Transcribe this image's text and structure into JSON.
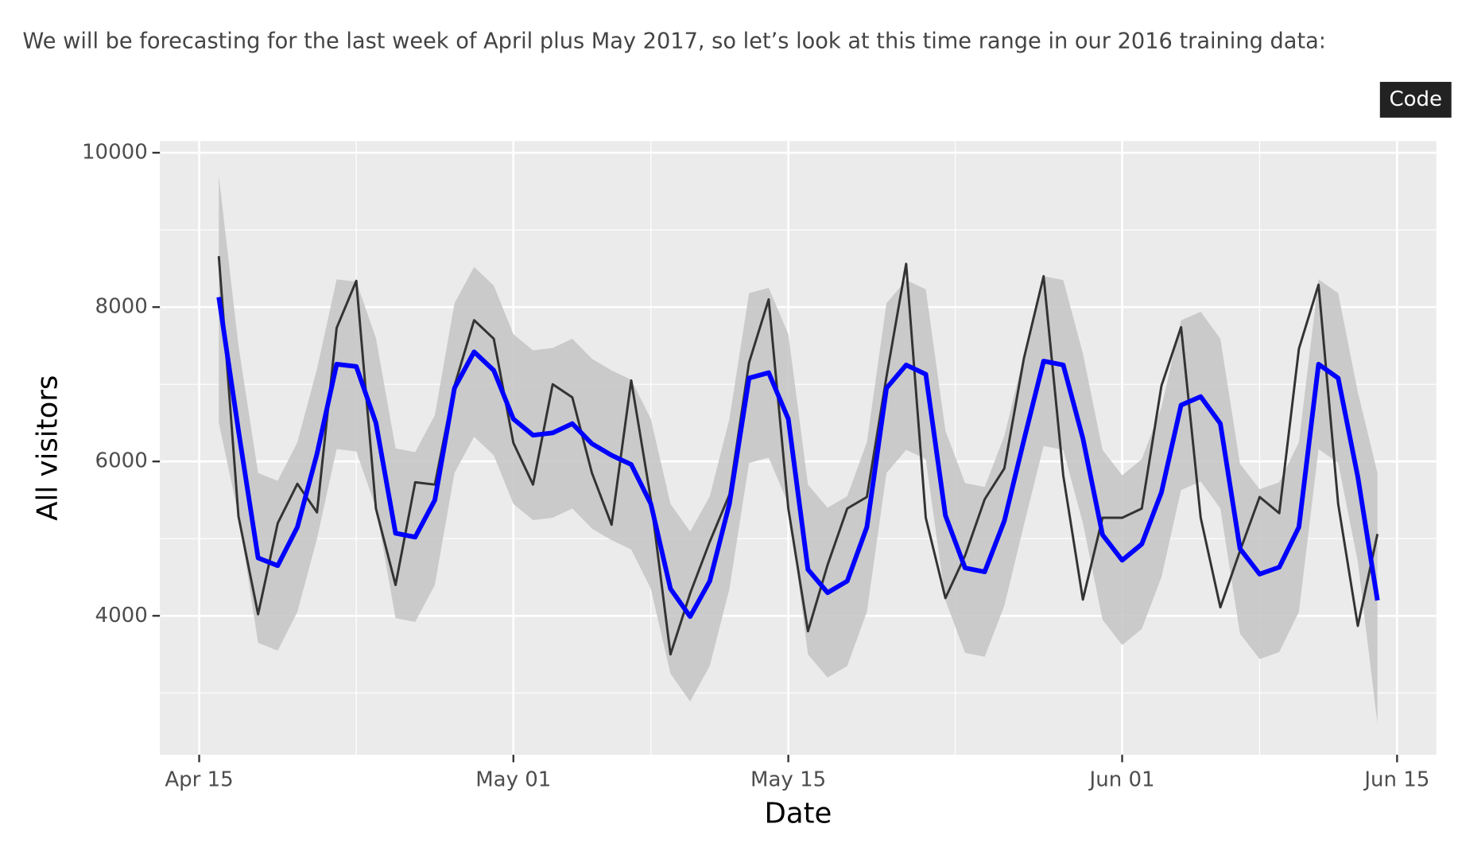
{
  "paragraph": "We will be forecasting for the last week of April plus May 2017, so let’s look at this time range in our 2016 training data:",
  "code_button": "Code",
  "chart_data": {
    "type": "line",
    "x_label": "Date",
    "y_label": "All visitors",
    "x": [
      "Apr 16",
      "Apr 17",
      "Apr 18",
      "Apr 19",
      "Apr 20",
      "Apr 21",
      "Apr 22",
      "Apr 23",
      "Apr 24",
      "Apr 25",
      "Apr 26",
      "Apr 27",
      "Apr 28",
      "Apr 29",
      "Apr 30",
      "May 01",
      "May 02",
      "May 03",
      "May 04",
      "May 05",
      "May 06",
      "May 07",
      "May 08",
      "May 09",
      "May 10",
      "May 11",
      "May 12",
      "May 13",
      "May 14",
      "May 15",
      "May 16",
      "May 17",
      "May 18",
      "May 19",
      "May 20",
      "May 21",
      "May 22",
      "May 23",
      "May 24",
      "May 25",
      "May 26",
      "May 27",
      "May 28",
      "May 29",
      "May 30",
      "May 31",
      "Jun 01",
      "Jun 02",
      "Jun 03",
      "Jun 04",
      "Jun 05",
      "Jun 06",
      "Jun 07",
      "Jun 08",
      "Jun 09",
      "Jun 10",
      "Jun 11",
      "Jun 12",
      "Jun 13",
      "Jun 14"
    ],
    "band": {
      "color": "#c4c4c4",
      "upper": [
        9700,
        7500,
        5850,
        5750,
        6250,
        7200,
        8360,
        8330,
        7600,
        6170,
        6120,
        6600,
        8050,
        8520,
        8280,
        7650,
        7440,
        7470,
        7590,
        7330,
        7180,
        7060,
        6550,
        5450,
        5090,
        5550,
        6550,
        8180,
        8250,
        7650,
        5700,
        5400,
        5550,
        6250,
        8050,
        8350,
        8230,
        6400,
        5720,
        5670,
        6330,
        7380,
        8400,
        8350,
        7400,
        6150,
        5820,
        6030,
        6700,
        7830,
        7940,
        7590,
        5970,
        5640,
        5730,
        6250,
        8360,
        8180,
        6900,
        5850
      ],
      "lower": [
        6500,
        5300,
        3650,
        3550,
        4050,
        5000,
        6160,
        6130,
        5400,
        3970,
        3920,
        4400,
        5850,
        6320,
        6080,
        5450,
        5240,
        5270,
        5390,
        5130,
        4980,
        4860,
        4350,
        3250,
        2890,
        3350,
        4350,
        5980,
        6050,
        5450,
        3500,
        3200,
        3350,
        4050,
        5850,
        6150,
        6030,
        4200,
        3520,
        3470,
        4130,
        5180,
        6200,
        6150,
        5200,
        3950,
        3620,
        3830,
        4500,
        5630,
        5740,
        5390,
        3770,
        3440,
        3530,
        4050,
        6160,
        5980,
        4700,
        2600
      ]
    },
    "series": [
      {
        "color": "#333333",
        "width": 2.5,
        "values": [
          8660,
          5290,
          4020,
          5200,
          5710,
          5340,
          7730,
          8340,
          5390,
          4400,
          5730,
          5700,
          6980,
          7830,
          7590,
          6240,
          5700,
          7000,
          6830,
          5850,
          5180,
          7050,
          5510,
          3500,
          4290,
          4960,
          5570,
          7280,
          8100,
          5390,
          3800,
          4660,
          5390,
          5540,
          7100,
          8560,
          5270,
          4230,
          4780,
          5510,
          5910,
          7340,
          8400,
          5820,
          4210,
          5270,
          5270,
          5390,
          6980,
          7740,
          5270,
          4110,
          4840,
          5540,
          5330,
          7460,
          8290,
          5450,
          3870,
          5060
        ]
      },
      {
        "color": "#0000ff",
        "width": 5,
        "values": [
          8130,
          6400,
          4750,
          4650,
          5150,
          6100,
          7260,
          7230,
          6500,
          5070,
          5020,
          5500,
          6950,
          7420,
          7180,
          6550,
          6340,
          6370,
          6490,
          6230,
          6080,
          5960,
          5450,
          4350,
          3990,
          4450,
          5450,
          7080,
          7150,
          6550,
          4600,
          4300,
          4450,
          5150,
          6950,
          7250,
          7130,
          5300,
          4620,
          4570,
          5230,
          6280,
          7300,
          7250,
          6300,
          5050,
          4720,
          4930,
          5600,
          6730,
          6840,
          6490,
          4870,
          4540,
          4630,
          5150,
          7260,
          7080,
          5800,
          4200
        ]
      }
    ],
    "xlim": [
      "Apr 13",
      "Jun 17"
    ],
    "xticks": [
      "Apr 15",
      "May 01",
      "May 15",
      "Jun 01",
      "Jun 15"
    ],
    "ylim": [
      2200,
      10150
    ],
    "yticks": [
      4000,
      6000,
      8000,
      10000
    ],
    "grid": true,
    "minor_grid": true
  }
}
